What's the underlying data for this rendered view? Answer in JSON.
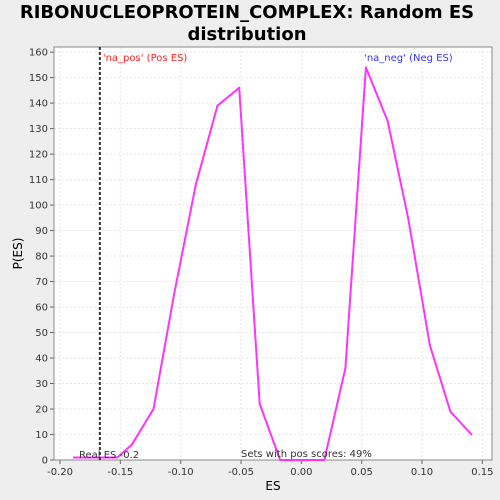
{
  "chart_data": {
    "type": "line",
    "title": "RIBONUCLEOPROTEIN_COMPLEX: Random ES\ndistribution",
    "xlabel": "ES",
    "ylabel": "P(ES)",
    "xlim": [
      -0.205,
      0.158
    ],
    "ylim": [
      0,
      162
    ],
    "x_ticks": [
      -0.2,
      -0.15,
      -0.1,
      -0.05,
      0.0,
      0.05,
      0.1,
      0.15
    ],
    "x_tick_labels": [
      "-0.20",
      "-0.15",
      "-0.10",
      "-0.05",
      "0.00",
      "0.05",
      "0.10",
      "0.15"
    ],
    "y_ticks": [
      0,
      10,
      20,
      30,
      40,
      50,
      60,
      70,
      80,
      90,
      100,
      110,
      120,
      130,
      140,
      150,
      160
    ],
    "grid": true,
    "series": [
      {
        "color": "#ff33ff",
        "x": [
          -0.1885,
          -0.17,
          -0.1525,
          -0.1405,
          -0.1225,
          -0.1055,
          -0.0875,
          -0.0695,
          -0.0515,
          -0.0345,
          -0.0175,
          0.0015,
          0.019,
          0.0365,
          0.0535,
          0.0715,
          0.0885,
          0.1065,
          0.1235,
          0.141
        ],
        "y": [
          1,
          1,
          1,
          6,
          20,
          65,
          108,
          139,
          146,
          22,
          0,
          0,
          0,
          36,
          154,
          133,
          95,
          45,
          19,
          10
        ]
      }
    ],
    "real_es": -0.167,
    "annotations": {
      "pos_label": "'na_pos' (Pos ES)",
      "neg_label": "'na_neg' (Neg ES)",
      "real_es_label": "Real ES -0.2",
      "pos_scores_label": "Sets with pos scores: 49%",
      "pos_color": "#ff2020",
      "neg_color": "#3333ff"
    }
  }
}
